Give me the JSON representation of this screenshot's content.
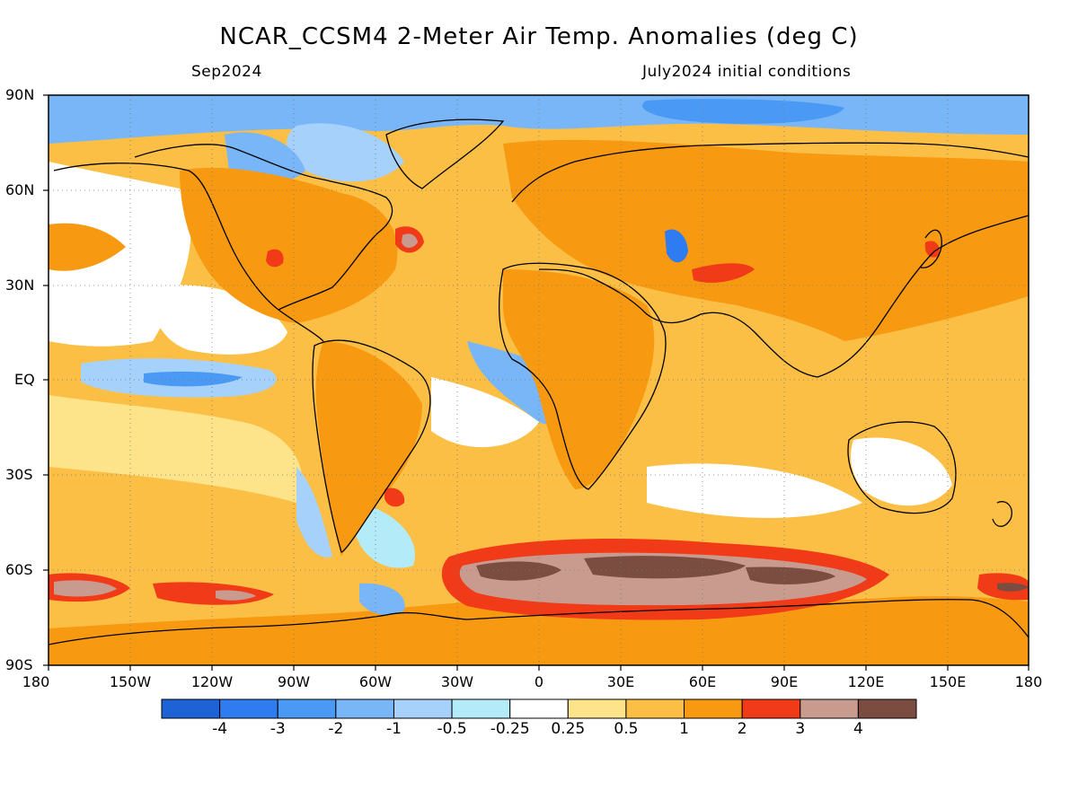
{
  "title": "NCAR_CCSM4 2-Meter Air Temp. Anomalies (deg C)",
  "subtitle_left": "Sep2024",
  "subtitle_right": "July2024 initial conditions",
  "lat_labels": [
    "90N",
    "60N",
    "30N",
    "EQ",
    "30S",
    "60S",
    "90S"
  ],
  "lon_labels": [
    "180",
    "150W",
    "120W",
    "90W",
    "60W",
    "30W",
    "0",
    "30E",
    "60E",
    "90E",
    "120E",
    "150E",
    "180"
  ],
  "colorbar": {
    "colors": [
      "#1e63d6",
      "#2f7cf0",
      "#4a9af5",
      "#79b6f7",
      "#a6d1fa",
      "#b3ecf8",
      "#ffffff",
      "#fde48a",
      "#fbbf45",
      "#f79a12",
      "#f13a17",
      "#c99b8f",
      "#7b4c40"
    ],
    "labels": [
      "-4",
      "-3",
      "-2",
      "-1",
      "-0.5",
      "-0.25",
      "0.25",
      "0.5",
      "1",
      "2",
      "3",
      "4"
    ]
  },
  "map_style": {
    "ocean_base_color": "#fbbf45",
    "land_base_color": "#f79a12",
    "coastline_color": "#000000",
    "grid": "dotted"
  }
}
